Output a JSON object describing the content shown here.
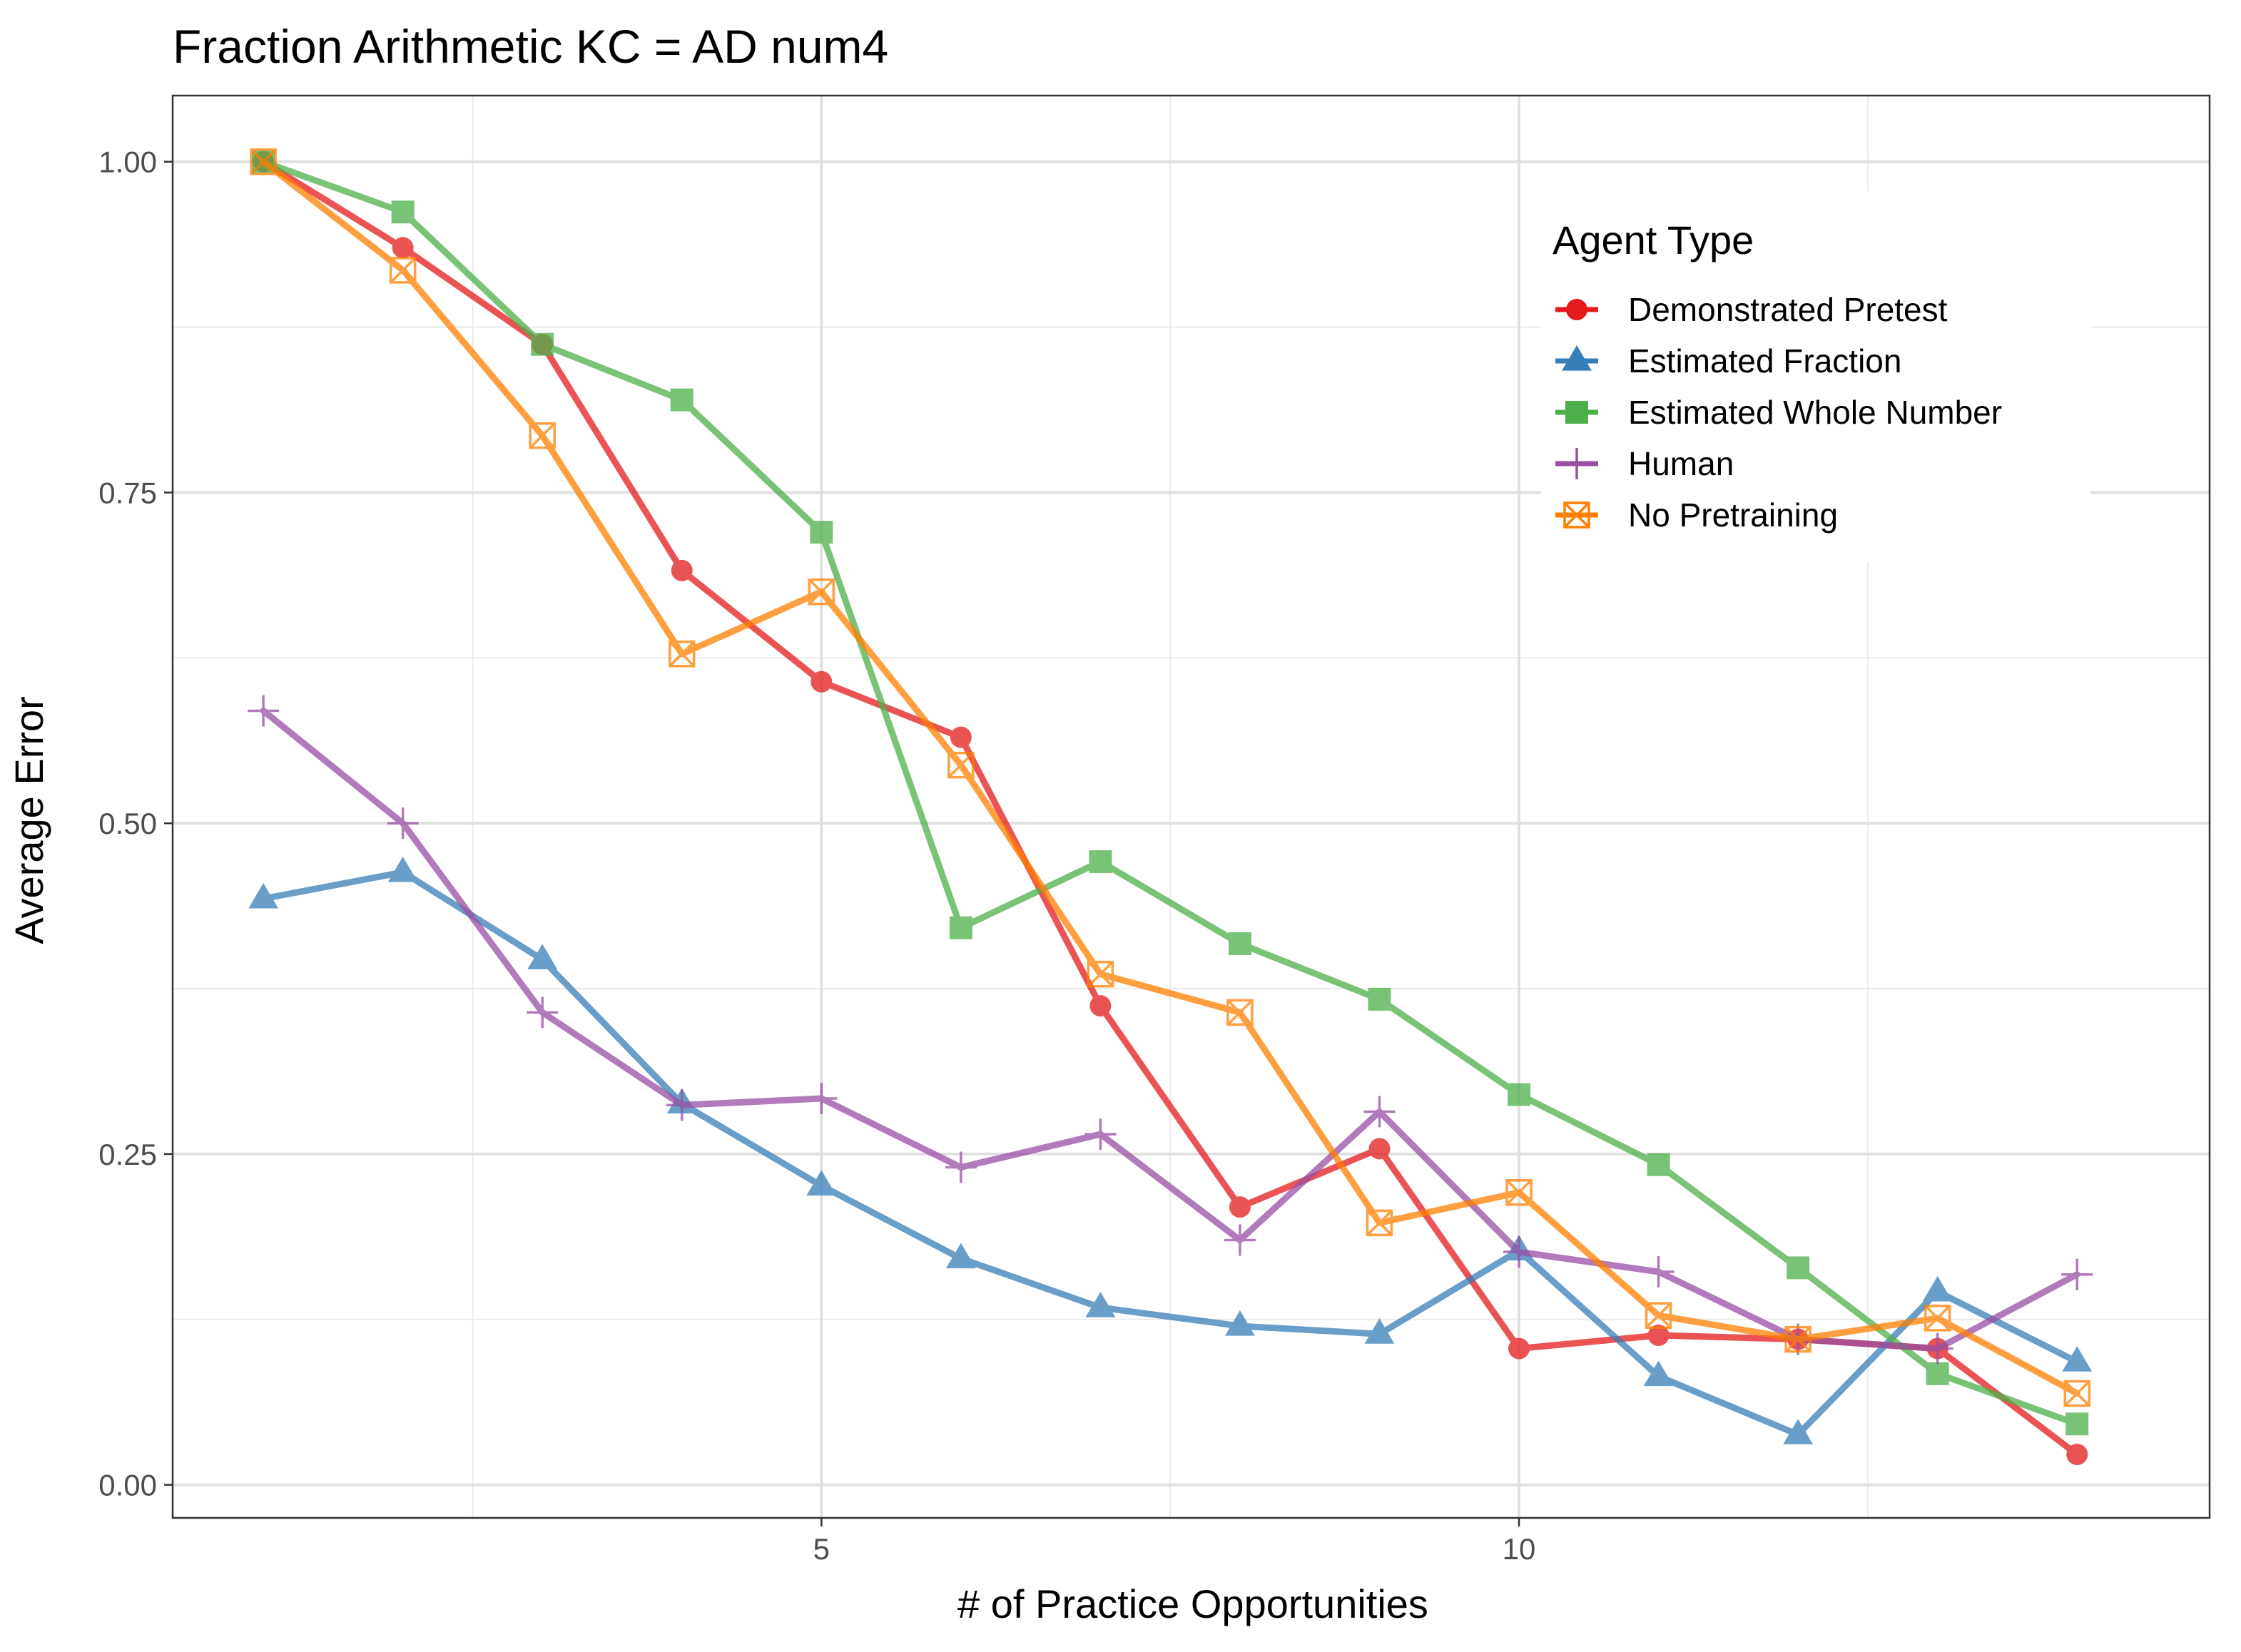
{
  "chart_data": {
    "type": "line",
    "title": "Fraction Arithmetic KC =  AD num4",
    "xlabel": "# of Practice Opportunities",
    "ylabel": "Average Error",
    "xlim": [
      0.35,
      14.95
    ],
    "ylim": [
      -0.025,
      1.05
    ],
    "xticks": [
      5,
      10
    ],
    "xtick_labels": [
      "5",
      "10"
    ],
    "xminor": [
      2.5,
      7.5,
      12.5
    ],
    "yticks": [
      0,
      0.25,
      0.5,
      0.75,
      1.0
    ],
    "ytick_labels": [
      "0.00",
      "0.25",
      "0.50",
      "0.75",
      "1.00"
    ],
    "yminor": [
      0.125,
      0.375,
      0.625,
      0.875
    ],
    "grid": true,
    "legend": {
      "title": "Agent Type",
      "placement": "top-right"
    },
    "x": [
      1,
      2,
      3,
      4,
      5,
      6,
      7,
      8,
      9,
      10,
      11,
      12,
      13,
      14
    ],
    "series": [
      {
        "name": "Demonstrated Pretest",
        "color": "#e41a1c",
        "marker": "circle",
        "values": [
          1.0,
          0.935,
          0.862,
          0.691,
          0.607,
          0.565,
          0.362,
          0.21,
          0.254,
          0.103,
          0.113,
          0.11,
          0.103,
          0.023
        ]
      },
      {
        "name": "Estimated Fraction",
        "color": "#377eb8",
        "marker": "triangle",
        "values": [
          0.443,
          0.463,
          0.397,
          0.288,
          0.226,
          0.171,
          0.134,
          0.12,
          0.114,
          0.177,
          0.082,
          0.038,
          0.146,
          0.093
        ]
      },
      {
        "name": "Estimated Whole Number",
        "color": "#4daf4a",
        "marker": "square",
        "values": [
          1.0,
          0.962,
          0.862,
          0.82,
          0.72,
          0.421,
          0.471,
          0.409,
          0.367,
          0.295,
          0.242,
          0.164,
          0.084,
          0.046
        ]
      },
      {
        "name": "Human",
        "color": "#984ea3",
        "marker": "plus",
        "values": [
          0.585,
          0.5,
          0.357,
          0.287,
          0.292,
          0.24,
          0.265,
          0.185,
          0.282,
          0.176,
          0.161,
          0.11,
          0.103,
          0.159
        ]
      },
      {
        "name": "No Pretraining",
        "color": "#ff7f00",
        "marker": "boxx",
        "values": [
          1.0,
          0.918,
          0.793,
          0.628,
          0.675,
          0.544,
          0.386,
          0.357,
          0.198,
          0.221,
          0.128,
          0.11,
          0.126,
          0.069
        ]
      }
    ]
  }
}
